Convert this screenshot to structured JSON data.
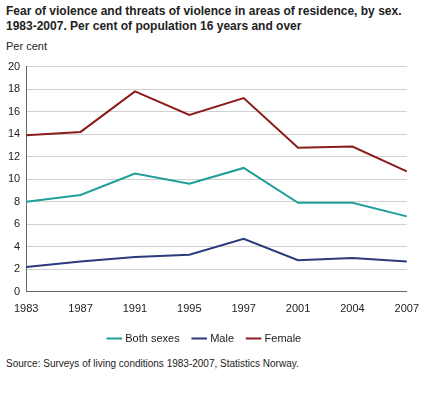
{
  "chart_data": {
    "type": "line",
    "title": "Fear of violence and threats of violence in areas of residence, by sex. 1983-2007. Per cent of population 16 years and over",
    "y_label": "Per cent",
    "source": "Source: Surveys of living conditions 1983-2007, Statistics Norway.",
    "categories": [
      "1983",
      "1987",
      "1991",
      "1995",
      "1997",
      "2001",
      "2004",
      "2007"
    ],
    "series": [
      {
        "name": "Both sexes",
        "color": "#1f9e9a",
        "values": [
          8.0,
          8.6,
          10.5,
          9.6,
          11.0,
          7.9,
          7.9,
          6.7
        ]
      },
      {
        "name": "Male",
        "color": "#2b3a7c",
        "values": [
          2.2,
          2.7,
          3.1,
          3.3,
          4.7,
          2.8,
          3.0,
          2.7
        ]
      },
      {
        "name": "Female",
        "color": "#8c1c1c",
        "values": [
          13.9,
          14.2,
          17.8,
          15.7,
          17.2,
          12.8,
          12.9,
          10.7
        ]
      }
    ],
    "ylim": [
      0,
      20
    ],
    "yticks": [
      0,
      2,
      4,
      6,
      8,
      10,
      12,
      14,
      16,
      18,
      20
    ],
    "grid": true,
    "legend": "bottom"
  }
}
